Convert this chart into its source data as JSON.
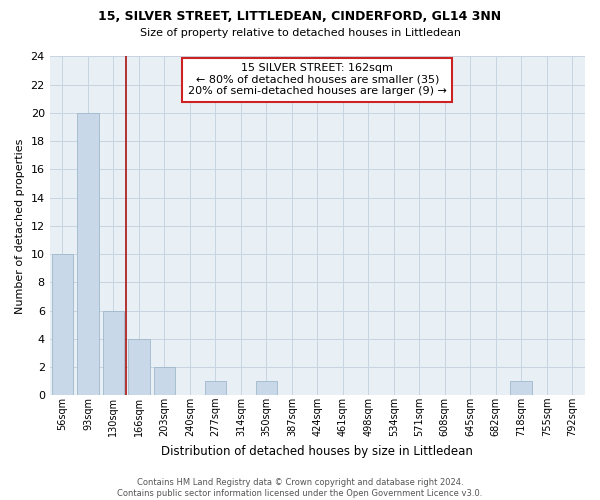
{
  "title": "15, SILVER STREET, LITTLEDEAN, CINDERFORD, GL14 3NN",
  "subtitle": "Size of property relative to detached houses in Littledean",
  "xlabel": "Distribution of detached houses by size in Littledean",
  "ylabel": "Number of detached properties",
  "bar_labels": [
    "56sqm",
    "93sqm",
    "130sqm",
    "166sqm",
    "203sqm",
    "240sqm",
    "277sqm",
    "314sqm",
    "350sqm",
    "387sqm",
    "424sqm",
    "461sqm",
    "498sqm",
    "534sqm",
    "571sqm",
    "608sqm",
    "645sqm",
    "682sqm",
    "718sqm",
    "755sqm",
    "792sqm"
  ],
  "bar_values": [
    10,
    20,
    6,
    4,
    2,
    0,
    1,
    0,
    1,
    0,
    0,
    0,
    0,
    0,
    0,
    0,
    0,
    0,
    1,
    0,
    0
  ],
  "bar_color": "#c8d8e8",
  "bar_edge_color": "#a0b8cc",
  "property_line_color": "#aa1111",
  "annotation_title": "15 SILVER STREET: 162sqm",
  "annotation_line1": "← 80% of detached houses are smaller (35)",
  "annotation_line2": "20% of semi-detached houses are larger (9) →",
  "annotation_box_edge_color": "#cc2222",
  "ylim": [
    0,
    24
  ],
  "yticks": [
    0,
    2,
    4,
    6,
    8,
    10,
    12,
    14,
    16,
    18,
    20,
    22,
    24
  ],
  "footer_line1": "Contains HM Land Registry data © Crown copyright and database right 2024.",
  "footer_line2": "Contains public sector information licensed under the Open Government Licence v3.0.",
  "grid_color": "#c8d4e0",
  "background_color": "#e8eff5"
}
